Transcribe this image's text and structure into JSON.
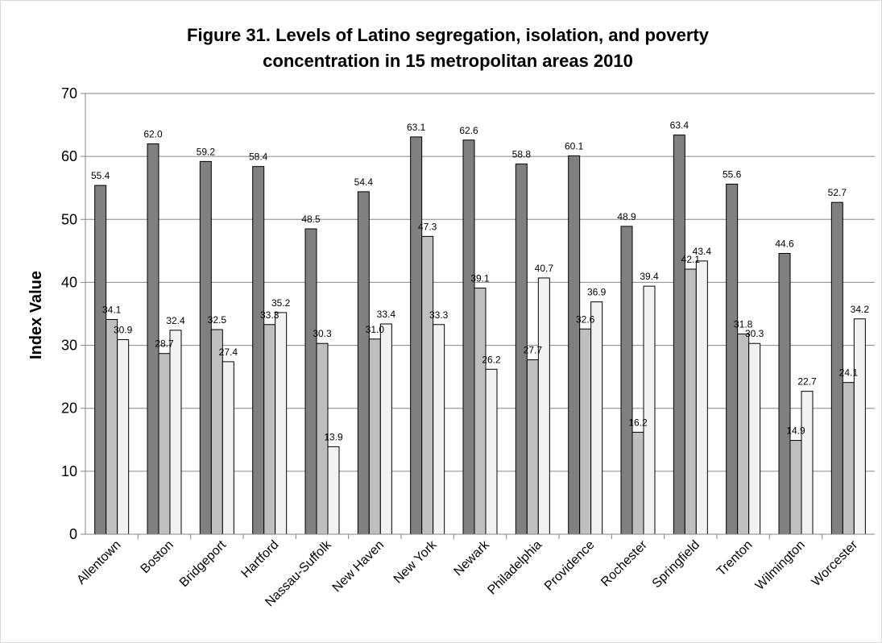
{
  "chart_data": {
    "type": "bar",
    "title_lines": [
      "Figure 31. Levels of Latino segregation, isolation, and poverty",
      "concentration in 15 metropolitan areas 2010"
    ],
    "ylabel": "Index Value",
    "xlabel": "",
    "ylim": [
      0,
      70
    ],
    "yticks": [
      0,
      10,
      20,
      30,
      40,
      50,
      60,
      70
    ],
    "grid": true,
    "legend": "none",
    "categories": [
      "Allentown",
      "Boston",
      "Bridgeport",
      "Hartford",
      "Nassau-Suffolk",
      "New Haven",
      "New York",
      "Newark",
      "Philadelphia",
      "Providence",
      "Rochester",
      "Springfield",
      "Trenton",
      "Wilmington",
      "Worcester"
    ],
    "series": [
      {
        "values": [
          55.4,
          62.0,
          59.2,
          58.4,
          48.5,
          54.4,
          63.1,
          62.6,
          58.8,
          60.1,
          48.9,
          63.4,
          55.6,
          44.6,
          52.7
        ],
        "color": "#808080"
      },
      {
        "values": [
          34.1,
          28.7,
          32.5,
          33.3,
          30.3,
          31.0,
          47.3,
          39.1,
          27.7,
          32.6,
          16.2,
          42.1,
          31.8,
          14.9,
          24.1
        ],
        "color": "#bfbfbf"
      },
      {
        "values": [
          30.9,
          32.4,
          27.4,
          35.2,
          13.9,
          33.4,
          33.3,
          26.2,
          40.7,
          36.9,
          39.4,
          43.4,
          30.3,
          22.7,
          34.2
        ],
        "color": "#f2f2f2"
      }
    ],
    "data_labels": [
      [
        "55.4",
        "62.0",
        "59.2",
        "58.4",
        "48.5",
        "54.4",
        "63.1",
        "62.6",
        "58.8",
        "60.1",
        "48.9",
        "63.4",
        "55.6",
        "44.6",
        "52.7"
      ],
      [
        "34.1",
        "28.7",
        "32.5",
        "33.3",
        "30.3",
        "31.0",
        "47.3",
        "39.1",
        "27.7",
        "32.6",
        "16.2",
        "42.1",
        "31.8",
        "14.9",
        "24.1"
      ],
      [
        "30.9",
        "32.4",
        "27.4",
        "35.2",
        "13.9",
        "33.4",
        "33.3",
        "26.2",
        "40.7",
        "36.9",
        "39.4",
        "43.4",
        "30.3",
        "22.7",
        "34.2"
      ]
    ]
  }
}
